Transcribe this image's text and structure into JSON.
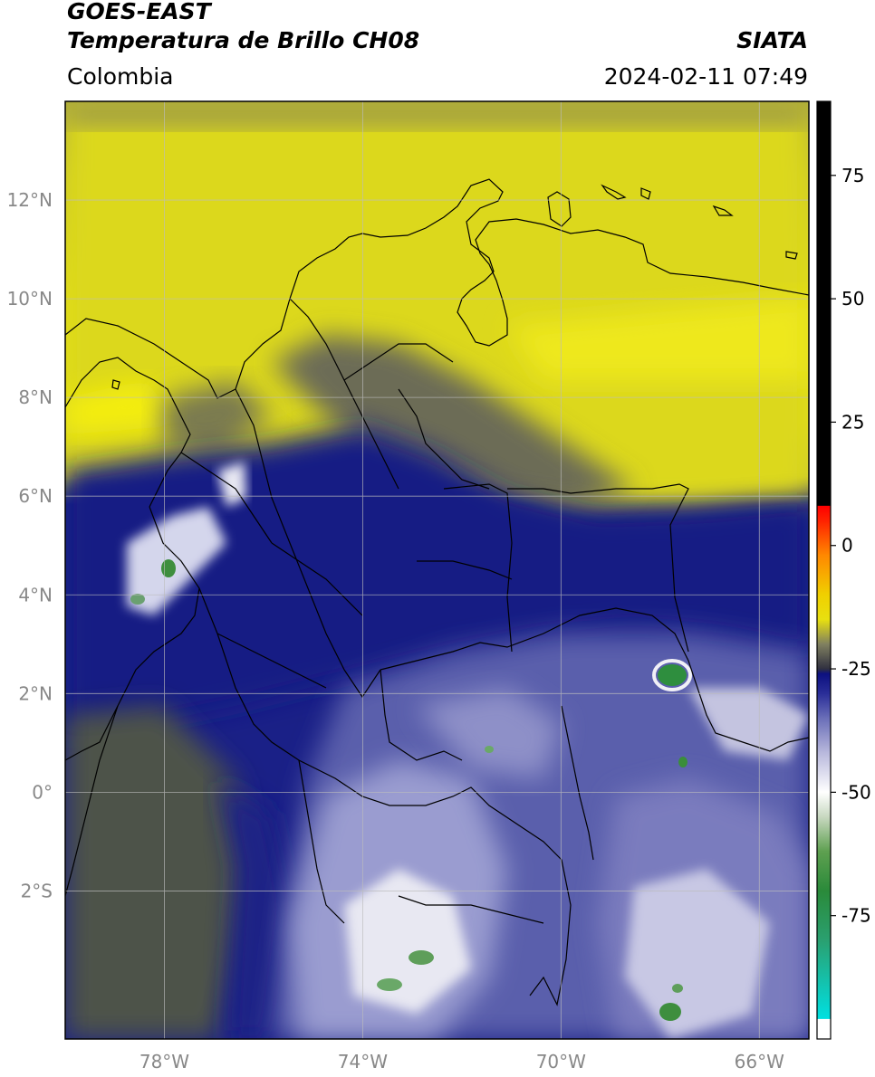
{
  "header": {
    "satellite": "GOES-EAST",
    "product": "Temperatura de Brillo CH08",
    "institution": "SIATA",
    "region": "Colombia",
    "datetime": "2024-02-11 07:49"
  },
  "map": {
    "lon_range": [
      -80,
      -65
    ],
    "lat_range": [
      -5,
      14
    ],
    "lon_ticks": [
      {
        "value": -78,
        "label": "78°W"
      },
      {
        "value": -74,
        "label": "74°W"
      },
      {
        "value": -70,
        "label": "70°W"
      },
      {
        "value": -66,
        "label": "66°W"
      }
    ],
    "lat_ticks": [
      {
        "value": 12,
        "label": "12°N"
      },
      {
        "value": 10,
        "label": "10°N"
      },
      {
        "value": 8,
        "label": "8°N"
      },
      {
        "value": 6,
        "label": "6°N"
      },
      {
        "value": 4,
        "label": "4°N"
      },
      {
        "value": 2,
        "label": "2°N"
      },
      {
        "value": 0,
        "label": "0°"
      },
      {
        "value": -2,
        "label": "2°S"
      }
    ],
    "colors": {
      "warm_yellow": "#dcd81a",
      "olive": "#8c8a4e",
      "dark_olive": "#4c5048",
      "navy": "#161c86",
      "mid_blue": "#5257a8",
      "light_blue": "#a8aad4",
      "white": "#f2f2f6",
      "green": "#3a8e3a"
    }
  },
  "colorbar": {
    "range": [
      -100,
      90
    ],
    "ticks": [
      {
        "value": 75,
        "label": "75"
      },
      {
        "value": 50,
        "label": "50"
      },
      {
        "value": 25,
        "label": "25"
      },
      {
        "value": 0,
        "label": "0"
      },
      {
        "value": -25,
        "label": "-25"
      },
      {
        "value": -50,
        "label": "-50"
      },
      {
        "value": -75,
        "label": "-75"
      }
    ],
    "stops": [
      {
        "value": -100,
        "color": "#ffffff"
      },
      {
        "value": -96,
        "color": "#ffffff"
      },
      {
        "value": -95.9,
        "color": "#00e0e0"
      },
      {
        "value": -90,
        "color": "#10c8b8"
      },
      {
        "value": -80,
        "color": "#2aa070"
      },
      {
        "value": -70,
        "color": "#2a8a3a"
      },
      {
        "value": -62,
        "color": "#5ea050"
      },
      {
        "value": -55,
        "color": "#c8d8c0"
      },
      {
        "value": -50,
        "color": "#ffffff"
      },
      {
        "value": -42,
        "color": "#b8b8dc"
      },
      {
        "value": -35,
        "color": "#6a6eb8"
      },
      {
        "value": -30,
        "color": "#2a2e98"
      },
      {
        "value": -26,
        "color": "#0c1080"
      },
      {
        "value": -25,
        "color": "#303040"
      },
      {
        "value": -20,
        "color": "#808060"
      },
      {
        "value": -15,
        "color": "#e8e010"
      },
      {
        "value": -10,
        "color": "#f0d000"
      },
      {
        "value": -2,
        "color": "#ff8800"
      },
      {
        "value": 5,
        "color": "#ff2200"
      },
      {
        "value": 8,
        "color": "#ff0000"
      },
      {
        "value": 8.1,
        "color": "#000000"
      },
      {
        "value": 90,
        "color": "#000000"
      }
    ]
  }
}
